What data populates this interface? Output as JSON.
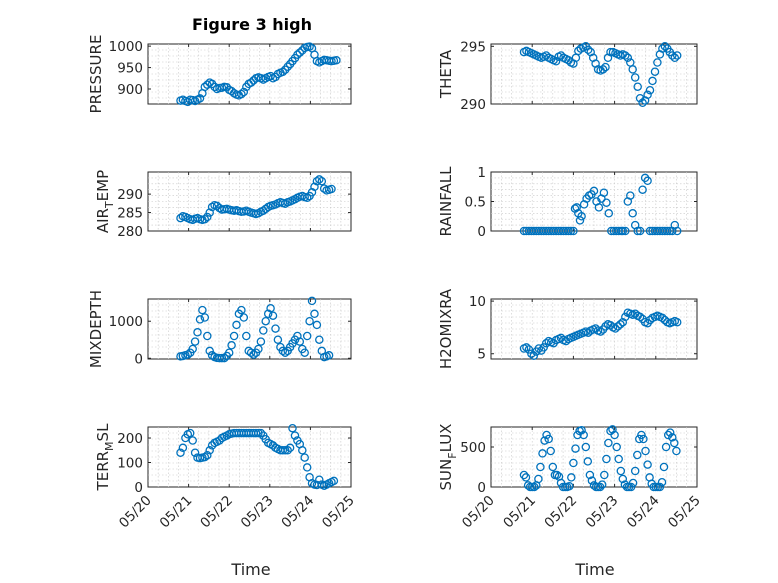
{
  "figure_title": "Figure 3 high",
  "x_ticks": [
    "05/20",
    "05/21",
    "05/22",
    "05/23",
    "05/24",
    "05/25"
  ],
  "x_label": "Time",
  "chart_data": [
    {
      "id": "pressure",
      "type": "scatter",
      "ylabel": "PRESSURE",
      "ylim": [
        865,
        1005
      ],
      "yticks": [
        900,
        950,
        1000
      ],
      "grid": true,
      "color": "#0072BD",
      "xlim": [
        0,
        5
      ],
      "x_unit": "days since 05/20",
      "x": [
        0.8,
        0.86,
        0.92,
        0.98,
        1.04,
        1.1,
        1.16,
        1.22,
        1.28,
        1.34,
        1.4,
        1.46,
        1.52,
        1.58,
        1.64,
        1.7,
        1.76,
        1.82,
        1.88,
        1.94,
        2.0,
        2.06,
        2.12,
        2.18,
        2.24,
        2.3,
        2.36,
        2.42,
        2.48,
        2.54,
        2.6,
        2.66,
        2.72,
        2.78,
        2.84,
        2.9,
        2.96,
        3.02,
        3.08,
        3.14,
        3.2,
        3.26,
        3.32,
        3.38,
        3.44,
        3.5,
        3.56,
        3.62,
        3.68,
        3.74,
        3.8,
        3.86,
        3.92,
        3.98,
        4.04,
        4.1,
        4.16,
        4.22,
        4.28,
        4.34,
        4.4,
        4.46,
        4.52,
        4.58,
        4.64
      ],
      "values": [
        873,
        875,
        872,
        870,
        875,
        874,
        872,
        875,
        878,
        890,
        905,
        910,
        915,
        912,
        905,
        900,
        902,
        903,
        905,
        904,
        898,
        895,
        890,
        887,
        885,
        888,
        893,
        905,
        912,
        915,
        920,
        925,
        927,
        925,
        922,
        925,
        928,
        930,
        925,
        928,
        935,
        938,
        940,
        945,
        952,
        958,
        965,
        972,
        980,
        985,
        990,
        996,
        998,
        999,
        995,
        980,
        965,
        962,
        965,
        968,
        967,
        966,
        965,
        966,
        967
      ]
    },
    {
      "id": "theta",
      "type": "scatter",
      "ylabel": "THETA",
      "ylim": [
        290,
        295.2
      ],
      "yticks": [
        290,
        295
      ],
      "grid": true,
      "color": "#0072BD",
      "xlim": [
        0,
        5
      ],
      "x_unit": "days since 05/20",
      "x": [
        0.8,
        0.86,
        0.92,
        0.98,
        1.04,
        1.1,
        1.16,
        1.22,
        1.28,
        1.34,
        1.4,
        1.46,
        1.52,
        1.58,
        1.64,
        1.7,
        1.76,
        1.82,
        1.88,
        1.94,
        2.0,
        2.06,
        2.12,
        2.18,
        2.24,
        2.3,
        2.36,
        2.42,
        2.48,
        2.54,
        2.6,
        2.66,
        2.72,
        2.78,
        2.84,
        2.9,
        2.96,
        3.02,
        3.08,
        3.14,
        3.2,
        3.26,
        3.32,
        3.38,
        3.44,
        3.5,
        3.56,
        3.62,
        3.68,
        3.74,
        3.8,
        3.86,
        3.92,
        3.98,
        4.04,
        4.1,
        4.16,
        4.22,
        4.28,
        4.34,
        4.4,
        4.46,
        4.52
      ],
      "values": [
        294.5,
        294.6,
        294.5,
        294.4,
        294.3,
        294.2,
        294.1,
        294.0,
        294.1,
        294.2,
        294.0,
        293.9,
        293.8,
        293.7,
        294.1,
        294.2,
        294.0,
        293.9,
        293.8,
        293.6,
        293.5,
        294.0,
        294.6,
        294.8,
        294.9,
        295.0,
        294.7,
        294.5,
        294.0,
        293.5,
        293.0,
        292.9,
        293.0,
        293.2,
        294.0,
        294.5,
        294.5,
        294.4,
        294.3,
        294.2,
        294.3,
        294.2,
        294.0,
        293.6,
        293.0,
        292.3,
        291.5,
        290.5,
        290.1,
        290.3,
        290.8,
        291.2,
        292.0,
        292.8,
        293.6,
        294.3,
        294.8,
        295.0,
        294.8,
        294.5,
        294.2,
        294.0,
        294.2
      ]
    },
    {
      "id": "air_temp",
      "type": "scatter",
      "ylabel": "AIR_TEMP",
      "ylabel_main": "AIR",
      "ylabel_sub": "T",
      "ylabel_rest": "EMP",
      "ylim": [
        280,
        296
      ],
      "yticks": [
        280,
        285,
        290
      ],
      "grid": true,
      "color": "#0072BD",
      "xlim": [
        0,
        5
      ],
      "x_unit": "days since 05/20",
      "x": [
        0.8,
        0.86,
        0.92,
        0.98,
        1.04,
        1.1,
        1.16,
        1.22,
        1.28,
        1.34,
        1.4,
        1.46,
        1.52,
        1.58,
        1.64,
        1.7,
        1.76,
        1.82,
        1.88,
        1.94,
        2.0,
        2.06,
        2.12,
        2.18,
        2.24,
        2.3,
        2.36,
        2.42,
        2.48,
        2.54,
        2.6,
        2.66,
        2.72,
        2.78,
        2.84,
        2.9,
        2.96,
        3.02,
        3.08,
        3.14,
        3.2,
        3.26,
        3.32,
        3.38,
        3.44,
        3.5,
        3.56,
        3.62,
        3.68,
        3.74,
        3.8,
        3.86,
        3.92,
        3.98,
        4.04,
        4.1,
        4.16,
        4.22,
        4.28,
        4.34,
        4.4,
        4.46,
        4.52
      ],
      "values": [
        283.5,
        284,
        283.8,
        283.5,
        283.2,
        283,
        283.3,
        283.5,
        283.2,
        283,
        283.2,
        283.8,
        285,
        286.5,
        287,
        286.8,
        286.2,
        285.8,
        285.9,
        286,
        285.8,
        285.6,
        285.5,
        285.6,
        285.4,
        285.2,
        285.3,
        285.5,
        285.2,
        285,
        284.8,
        284.6,
        284.8,
        285.2,
        285.5,
        286,
        286.5,
        286.8,
        287,
        287.2,
        287.5,
        287.8,
        287.6,
        287.4,
        287.8,
        288,
        288.3,
        288.6,
        289,
        289.3,
        289.5,
        289.2,
        289,
        289.5,
        290.5,
        292,
        293.5,
        294,
        293.5,
        291.5,
        291,
        291.2,
        291.4
      ]
    },
    {
      "id": "rainfall",
      "type": "scatter",
      "ylabel": "RAINFALL",
      "ylim": [
        0,
        1
      ],
      "yticks": [
        0,
        0.5,
        1
      ],
      "grid": true,
      "color": "#0072BD",
      "xlim": [
        0,
        5
      ],
      "x_unit": "days since 05/20",
      "x": [
        0.8,
        0.86,
        0.92,
        0.98,
        1.04,
        1.1,
        1.16,
        1.22,
        1.28,
        1.34,
        1.4,
        1.46,
        1.52,
        1.58,
        1.64,
        1.7,
        1.76,
        1.82,
        1.88,
        1.94,
        2.0,
        2.04,
        2.08,
        2.12,
        2.16,
        2.2,
        2.26,
        2.32,
        2.38,
        2.44,
        2.5,
        2.56,
        2.62,
        2.68,
        2.74,
        2.8,
        2.86,
        2.92,
        2.98,
        3.04,
        3.1,
        3.16,
        3.2,
        3.26,
        3.32,
        3.38,
        3.44,
        3.5,
        3.56,
        3.62,
        3.68,
        3.74,
        3.8,
        3.86,
        3.92,
        3.98,
        4.04,
        4.1,
        4.16,
        4.22,
        4.28,
        4.34,
        4.4,
        4.46,
        4.52
      ],
      "values": [
        0,
        0,
        0,
        0,
        0,
        0,
        0,
        0,
        0,
        0,
        0,
        0,
        0,
        0,
        0,
        0,
        0,
        0,
        0,
        0,
        0,
        0.38,
        0.4,
        0.3,
        0.18,
        0.25,
        0.45,
        0.55,
        0.6,
        0.62,
        0.68,
        0.5,
        0.4,
        0.55,
        0.65,
        0.48,
        0.3,
        0,
        0,
        0,
        0,
        0,
        0,
        0,
        0.5,
        0.6,
        0.3,
        0.1,
        0,
        0,
        0.7,
        0.9,
        0.85,
        0,
        0,
        0,
        0,
        0,
        0,
        0,
        0,
        0,
        0,
        0.1,
        0
      ]
    },
    {
      "id": "mixdepth",
      "type": "scatter",
      "ylabel": "MIXDEPTH",
      "ylim": [
        -20,
        1600
      ],
      "yticks": [
        0,
        1000
      ],
      "grid": true,
      "color": "#0072BD",
      "xlim": [
        0,
        5
      ],
      "x_unit": "days since 05/20",
      "x": [
        0.8,
        0.86,
        0.92,
        0.98,
        1.04,
        1.1,
        1.16,
        1.22,
        1.28,
        1.34,
        1.4,
        1.46,
        1.52,
        1.58,
        1.64,
        1.7,
        1.76,
        1.82,
        1.88,
        1.94,
        2.0,
        2.06,
        2.12,
        2.18,
        2.24,
        2.3,
        2.36,
        2.42,
        2.48,
        2.54,
        2.6,
        2.66,
        2.72,
        2.78,
        2.84,
        2.9,
        2.96,
        3.02,
        3.08,
        3.14,
        3.2,
        3.26,
        3.32,
        3.38,
        3.44,
        3.5,
        3.56,
        3.62,
        3.68,
        3.74,
        3.8,
        3.86,
        3.92,
        3.98,
        4.04,
        4.1,
        4.16,
        4.22,
        4.28,
        4.34,
        4.4,
        4.46
      ],
      "values": [
        50,
        60,
        80,
        100,
        150,
        250,
        450,
        700,
        1050,
        1300,
        1100,
        600,
        200,
        80,
        30,
        10,
        5,
        5,
        5,
        60,
        150,
        350,
        600,
        900,
        1200,
        1300,
        1100,
        600,
        200,
        150,
        100,
        150,
        250,
        450,
        750,
        1000,
        1200,
        1350,
        1150,
        800,
        500,
        300,
        200,
        150,
        200,
        300,
        400,
        500,
        600,
        450,
        250,
        150,
        600,
        1000,
        1550,
        1200,
        900,
        500,
        200,
        30,
        50,
        80
      ]
    },
    {
      "id": "h2omixra",
      "type": "scatter",
      "ylabel": "H2OMIXRA",
      "ylim": [
        4.5,
        10.2
      ],
      "yticks": [
        5,
        10
      ],
      "grid": true,
      "color": "#0072BD",
      "xlim": [
        0,
        5
      ],
      "x_unit": "days since 05/20",
      "x": [
        0.8,
        0.86,
        0.92,
        0.98,
        1.04,
        1.1,
        1.16,
        1.22,
        1.28,
        1.34,
        1.4,
        1.46,
        1.52,
        1.58,
        1.64,
        1.7,
        1.76,
        1.82,
        1.88,
        1.94,
        2.0,
        2.06,
        2.12,
        2.18,
        2.24,
        2.3,
        2.36,
        2.42,
        2.48,
        2.54,
        2.6,
        2.66,
        2.72,
        2.78,
        2.84,
        2.9,
        2.96,
        3.02,
        3.08,
        3.14,
        3.2,
        3.26,
        3.32,
        3.38,
        3.44,
        3.5,
        3.56,
        3.62,
        3.68,
        3.74,
        3.8,
        3.86,
        3.92,
        3.98,
        4.04,
        4.1,
        4.16,
        4.22,
        4.28,
        4.34,
        4.4,
        4.46,
        4.52
      ],
      "values": [
        5.5,
        5.6,
        5.4,
        5.0,
        4.8,
        5.2,
        5.5,
        5.3,
        5.6,
        6.0,
        6.2,
        6.1,
        6.0,
        6.3,
        6.4,
        6.5,
        6.3,
        6.2,
        6.4,
        6.5,
        6.6,
        6.7,
        6.8,
        6.9,
        7.0,
        7.1,
        7.0,
        7.2,
        7.3,
        7.4,
        7.2,
        7.1,
        7.3,
        7.6,
        7.8,
        7.7,
        7.5,
        7.4,
        7.6,
        7.8,
        8.0,
        8.5,
        8.9,
        8.8,
        8.7,
        8.8,
        8.6,
        8.5,
        8.3,
        8.0,
        7.9,
        8.2,
        8.4,
        8.5,
        8.6,
        8.5,
        8.4,
        8.2,
        8.0,
        7.9,
        8.0,
        8.1,
        8.0
      ]
    },
    {
      "id": "terr_msl",
      "type": "scatter",
      "ylabel": "TERR_MSL",
      "ylabel_main": "TERR",
      "ylabel_sub": "M",
      "ylabel_rest": "SL",
      "ylim": [
        0,
        245
      ],
      "yticks": [
        0,
        100,
        200
      ],
      "grid": true,
      "color": "#0072BD",
      "xlim": [
        0,
        5
      ],
      "x_unit": "days since 05/20",
      "x": [
        0.8,
        0.86,
        0.92,
        0.98,
        1.04,
        1.1,
        1.16,
        1.22,
        1.28,
        1.34,
        1.4,
        1.46,
        1.52,
        1.58,
        1.64,
        1.7,
        1.76,
        1.82,
        1.88,
        1.94,
        2.0,
        2.06,
        2.12,
        2.18,
        2.24,
        2.3,
        2.36,
        2.42,
        2.48,
        2.54,
        2.6,
        2.66,
        2.72,
        2.78,
        2.84,
        2.9,
        2.96,
        3.02,
        3.08,
        3.14,
        3.2,
        3.26,
        3.32,
        3.38,
        3.44,
        3.5,
        3.56,
        3.62,
        3.68,
        3.74,
        3.8,
        3.86,
        3.92,
        3.98,
        4.04,
        4.1,
        4.16,
        4.22,
        4.28,
        4.34,
        4.4,
        4.46,
        4.52,
        4.58
      ],
      "values": [
        140,
        160,
        200,
        215,
        220,
        190,
        140,
        120,
        118,
        120,
        122,
        130,
        150,
        170,
        180,
        185,
        190,
        200,
        205,
        210,
        215,
        218,
        220,
        220,
        220,
        220,
        220,
        220,
        220,
        220,
        220,
        220,
        220,
        220,
        210,
        195,
        180,
        175,
        170,
        160,
        155,
        150,
        150,
        150,
        150,
        160,
        240,
        210,
        190,
        175,
        150,
        120,
        80,
        40,
        15,
        10,
        8,
        30,
        10,
        5,
        10,
        15,
        20,
        25
      ]
    },
    {
      "id": "sun_flux",
      "type": "scatter",
      "ylabel": "SUN_FLUX",
      "ylabel_main": "SUN",
      "ylabel_sub": "F",
      "ylabel_rest": "LUX",
      "ylim": [
        0,
        750
      ],
      "yticks": [
        0,
        500
      ],
      "grid": true,
      "color": "#0072BD",
      "xlim": [
        0,
        5
      ],
      "x_unit": "days since 05/20",
      "x": [
        0.8,
        0.85,
        0.9,
        0.95,
        1.0,
        1.05,
        1.1,
        1.15,
        1.2,
        1.25,
        1.3,
        1.35,
        1.4,
        1.45,
        1.5,
        1.55,
        1.6,
        1.65,
        1.7,
        1.75,
        1.8,
        1.85,
        1.9,
        1.95,
        2.0,
        2.05,
        2.1,
        2.15,
        2.2,
        2.25,
        2.3,
        2.35,
        2.4,
        2.45,
        2.5,
        2.55,
        2.6,
        2.65,
        2.7,
        2.75,
        2.8,
        2.85,
        2.9,
        2.95,
        3.0,
        3.05,
        3.1,
        3.15,
        3.2,
        3.25,
        3.3,
        3.35,
        3.4,
        3.45,
        3.5,
        3.55,
        3.6,
        3.65,
        3.7,
        3.75,
        3.8,
        3.85,
        3.9,
        3.95,
        4.0,
        4.05,
        4.1,
        4.15,
        4.2,
        4.25,
        4.3,
        4.35,
        4.4,
        4.45,
        4.5
      ],
      "values": [
        150,
        120,
        20,
        0,
        0,
        0,
        20,
        100,
        250,
        420,
        580,
        650,
        600,
        450,
        250,
        150,
        150,
        130,
        50,
        0,
        0,
        0,
        10,
        120,
        300,
        480,
        650,
        700,
        710,
        650,
        500,
        320,
        150,
        80,
        20,
        0,
        0,
        0,
        30,
        150,
        350,
        550,
        700,
        720,
        650,
        500,
        350,
        200,
        100,
        30,
        0,
        0,
        0,
        50,
        200,
        400,
        600,
        650,
        600,
        450,
        280,
        120,
        40,
        0,
        0,
        0,
        0,
        60,
        250,
        500,
        650,
        680,
        620,
        550,
        450
      ]
    }
  ]
}
